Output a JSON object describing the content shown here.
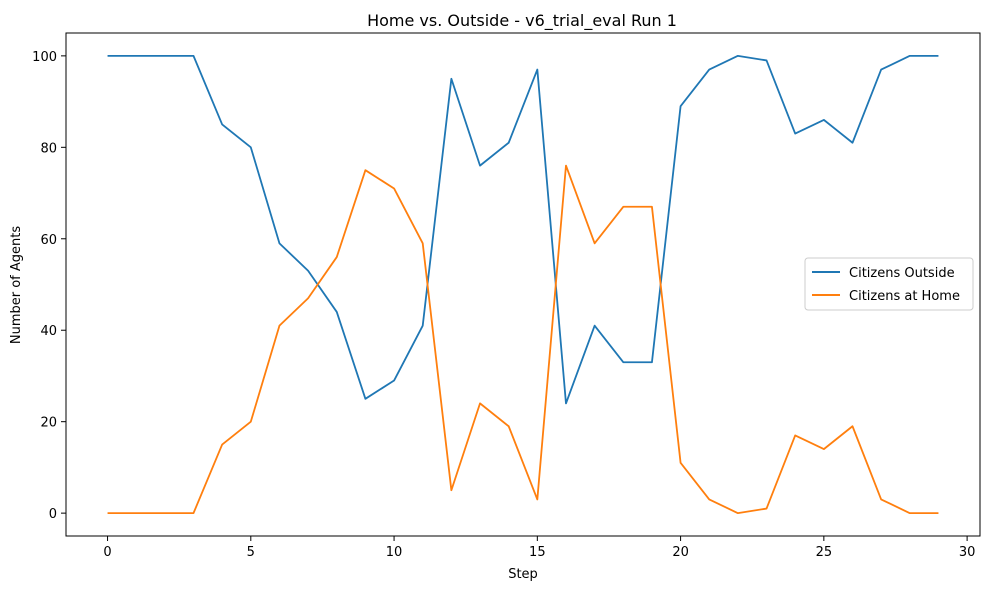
{
  "chart_data": {
    "type": "line",
    "title": "Home vs. Outside - v6_trial_eval Run 1",
    "xlabel": "Step",
    "ylabel": "Number of Agents",
    "xlim": [
      -1.45,
      30.45
    ],
    "ylim": [
      -5,
      105
    ],
    "xticks": [
      0,
      5,
      10,
      15,
      20,
      25,
      30
    ],
    "yticks": [
      0,
      20,
      40,
      60,
      80,
      100
    ],
    "grid": false,
    "legend_position": "center-right",
    "x": [
      0,
      1,
      2,
      3,
      4,
      5,
      6,
      7,
      8,
      9,
      10,
      11,
      12,
      13,
      14,
      15,
      16,
      17,
      18,
      19,
      20,
      21,
      22,
      23,
      24,
      25,
      26,
      27,
      28,
      29
    ],
    "series": [
      {
        "name": "Citizens Outside",
        "color": "#1f77b4",
        "values": [
          100,
          100,
          100,
          100,
          85,
          80,
          59,
          53,
          44,
          25,
          29,
          41,
          95,
          76,
          81,
          97,
          24,
          41,
          33,
          33,
          89,
          97,
          100,
          99,
          83,
          86,
          81,
          97,
          100,
          100
        ]
      },
      {
        "name": "Citizens at Home",
        "color": "#ff7f0e",
        "values": [
          0,
          0,
          0,
          0,
          15,
          20,
          41,
          47,
          56,
          75,
          71,
          59,
          5,
          24,
          19,
          3,
          76,
          59,
          67,
          67,
          11,
          3,
          0,
          1,
          17,
          14,
          19,
          3,
          0,
          0
        ]
      }
    ]
  }
}
